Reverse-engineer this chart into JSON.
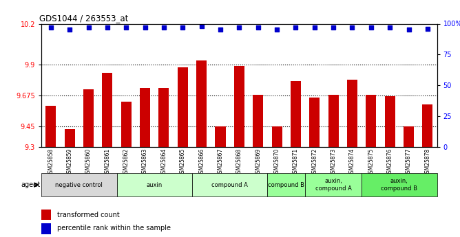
{
  "title": "GDS1044 / 263553_at",
  "samples": [
    "GSM25858",
    "GSM25859",
    "GSM25860",
    "GSM25861",
    "GSM25862",
    "GSM25863",
    "GSM25864",
    "GSM25865",
    "GSM25866",
    "GSM25867",
    "GSM25868",
    "GSM25869",
    "GSM25870",
    "GSM25871",
    "GSM25872",
    "GSM25873",
    "GSM25874",
    "GSM25875",
    "GSM25876",
    "GSM25877",
    "GSM25878"
  ],
  "bar_values": [
    9.6,
    9.43,
    9.72,
    9.84,
    9.63,
    9.73,
    9.73,
    9.88,
    9.93,
    9.45,
    9.89,
    9.68,
    9.45,
    9.78,
    9.66,
    9.68,
    9.79,
    9.68,
    9.67,
    9.45,
    9.61
  ],
  "percentile_values": [
    97,
    95,
    97,
    97,
    97,
    97,
    97,
    97,
    98,
    95,
    97,
    97,
    95,
    97,
    97,
    97,
    97,
    97,
    97,
    95,
    96
  ],
  "bar_color": "#cc0000",
  "dot_color": "#0000cc",
  "ylim_left": [
    9.3,
    10.2
  ],
  "ylim_right": [
    0,
    100
  ],
  "yticks_left": [
    9.3,
    9.45,
    9.675,
    9.9,
    10.2
  ],
  "ytick_labels_left": [
    "9.3",
    "9.45",
    "9.675",
    "9.9",
    "10.2"
  ],
  "yticks_right": [
    0,
    25,
    50,
    75,
    100
  ],
  "ytick_labels_right": [
    "0",
    "25",
    "50",
    "75",
    "100%"
  ],
  "hlines": [
    9.45,
    9.675,
    9.9
  ],
  "groups": [
    {
      "label": "negative control",
      "start": 0,
      "end": 4,
      "color": "#d8d8d8"
    },
    {
      "label": "auxin",
      "start": 4,
      "end": 8,
      "color": "#ccffcc"
    },
    {
      "label": "compound A",
      "start": 8,
      "end": 12,
      "color": "#ccffcc"
    },
    {
      "label": "compound B",
      "start": 12,
      "end": 14,
      "color": "#99ff99"
    },
    {
      "label": "auxin,\ncompound A",
      "start": 14,
      "end": 17,
      "color": "#99ff99"
    },
    {
      "label": "auxin,\ncompound B",
      "start": 17,
      "end": 21,
      "color": "#66ee66"
    }
  ],
  "legend_bar_label": "transformed count",
  "legend_dot_label": "percentile rank within the sample",
  "bar_width": 0.55
}
